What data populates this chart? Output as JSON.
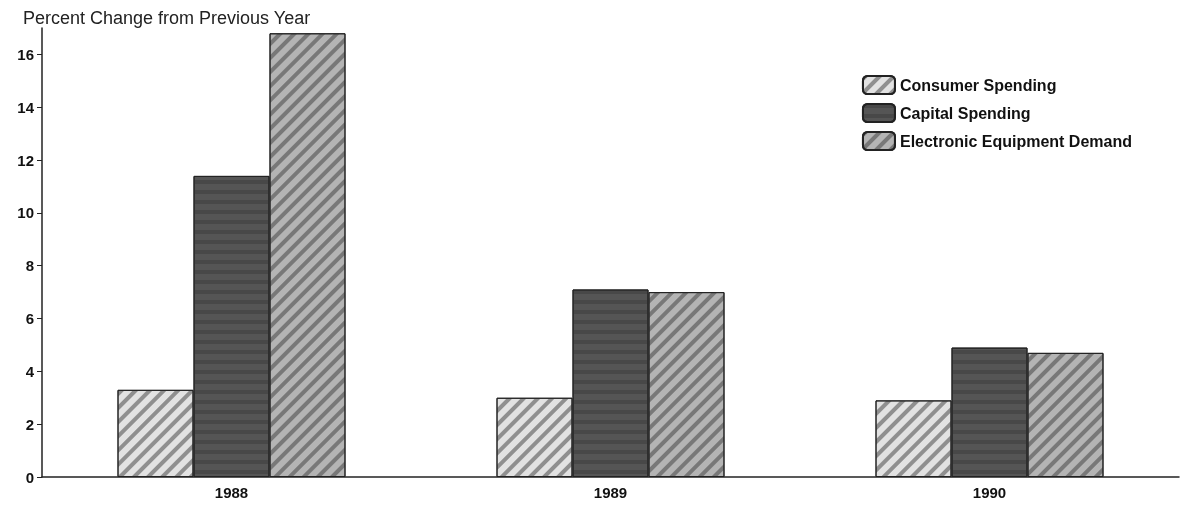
{
  "chart_data": {
    "type": "bar",
    "title": "Percent Change from Previous Year",
    "categories": [
      "1988",
      "1989",
      "1990"
    ],
    "series": [
      {
        "name": "Consumer Spending",
        "color": "#e2e2e2",
        "values": [
          3.3,
          3.0,
          2.9
        ]
      },
      {
        "name": "Capital Spending",
        "color": "#555555",
        "values": [
          11.4,
          7.1,
          4.9
        ]
      },
      {
        "name": "Electronic Equipment Demand",
        "color": "#b4b4b4",
        "values": [
          16.8,
          7.0,
          4.7
        ]
      }
    ],
    "ylim": [
      0,
      17
    ],
    "yticks": [
      0,
      2,
      4,
      6,
      8,
      10,
      12,
      14,
      16
    ],
    "grid": false,
    "legend": "top right"
  }
}
